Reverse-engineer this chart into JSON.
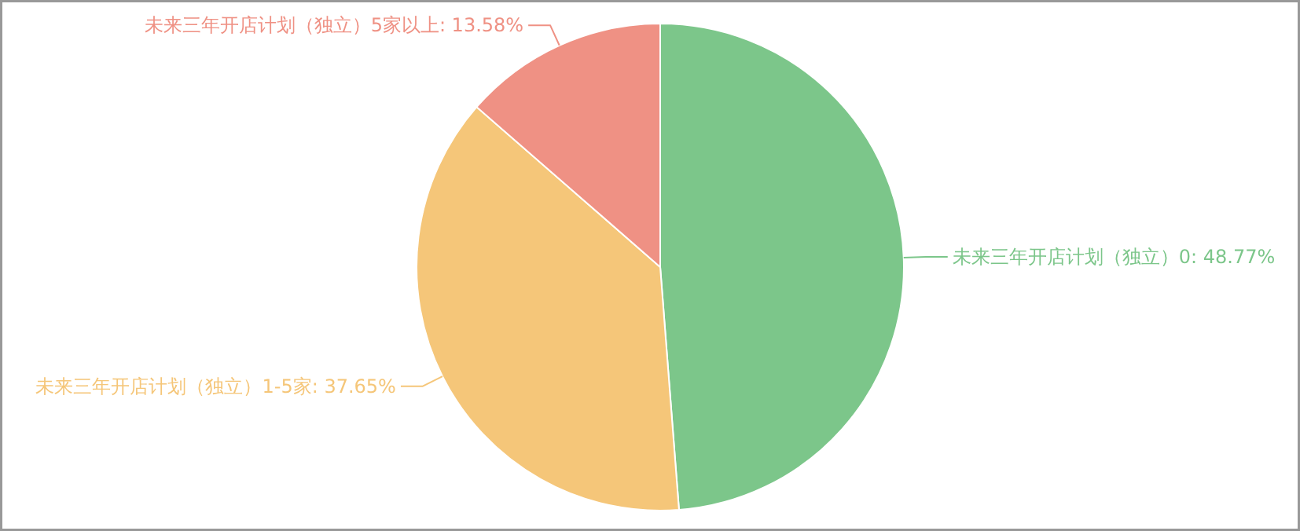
{
  "chart_data": {
    "type": "pie",
    "categories": [
      "未来三年开店计划（独立）0",
      "未来三年开店计划（独立）1-5家",
      "未来三年开店计划（独立）5家以上"
    ],
    "values": [
      48.77,
      37.65,
      13.58
    ],
    "value_labels": [
      "48.77%",
      "37.65%",
      "13.58%"
    ],
    "colors": [
      "#7cc68a",
      "#f5c679",
      "#ef9184"
    ]
  }
}
